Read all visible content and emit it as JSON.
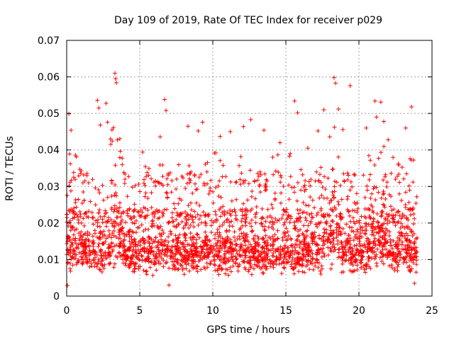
{
  "chart_data": {
    "type": "scatter",
    "title": "Day 109 of 2019, Rate Of TEC Index for receiver p029",
    "xlabel": "GPS time / hours",
    "ylabel": "ROTI / TECUs",
    "xlim": [
      0,
      25
    ],
    "ylim": [
      0,
      0.07
    ],
    "xticks": [
      0,
      5,
      10,
      15,
      20,
      25
    ],
    "yticks": [
      0,
      0.01,
      0.02,
      0.03,
      0.04,
      0.05,
      0.06,
      0.07
    ],
    "xtick_labels": [
      "0",
      "5",
      "10",
      "15",
      "20",
      "25"
    ],
    "ytick_labels": [
      "0",
      "0.01",
      "0.02",
      "0.03",
      "0.04",
      "0.05",
      "0.06",
      "0.07"
    ],
    "grid": true,
    "marker": "+",
    "color": "#ff0000",
    "series": [
      {
        "name": "ROTI",
        "points": [
          [
            0.1,
            0.0092
          ],
          [
            0.15,
            0.0499
          ],
          [
            0.2,
            0.0389
          ],
          [
            0.25,
            0.0362
          ],
          [
            0.3,
            0.0454
          ],
          [
            0.5,
            0.0241
          ],
          [
            0.9,
            0.0347
          ],
          [
            1.0,
            0.0343
          ],
          [
            1.2,
            0.0262
          ],
          [
            1.5,
            0.031
          ],
          [
            2.1,
            0.0536
          ],
          [
            2.2,
            0.0515
          ],
          [
            2.3,
            0.0468
          ],
          [
            2.7,
            0.0528
          ],
          [
            2.8,
            0.0476
          ],
          [
            3.0,
            0.043
          ],
          [
            3.1,
            0.0455
          ],
          [
            3.2,
            0.0461
          ],
          [
            3.3,
            0.061
          ],
          [
            3.35,
            0.0595
          ],
          [
            3.4,
            0.0584
          ],
          [
            3.8,
            0.036
          ],
          [
            4.5,
            0.0298
          ],
          [
            5.2,
            0.0394
          ],
          [
            5.5,
            0.0338
          ],
          [
            6.4,
            0.0436
          ],
          [
            6.7,
            0.0538
          ],
          [
            6.8,
            0.0508
          ],
          [
            7.2,
            0.0316
          ],
          [
            8.3,
            0.0465
          ],
          [
            8.5,
            0.034
          ],
          [
            9.0,
            0.0452
          ],
          [
            9.3,
            0.0476
          ],
          [
            9.6,
            0.034
          ],
          [
            10.2,
            0.0392
          ],
          [
            10.5,
            0.0437
          ],
          [
            11.2,
            0.045
          ],
          [
            11.8,
            0.0357
          ],
          [
            12.1,
            0.0464
          ],
          [
            12.6,
            0.0483
          ],
          [
            13.5,
            0.0454
          ],
          [
            14.1,
            0.038
          ],
          [
            14.6,
            0.042
          ],
          [
            15.3,
            0.039
          ],
          [
            15.6,
            0.0534
          ],
          [
            15.8,
            0.0502
          ],
          [
            16.5,
            0.0405
          ],
          [
            17.2,
            0.0452
          ],
          [
            17.6,
            0.051
          ],
          [
            18.0,
            0.0436
          ],
          [
            18.3,
            0.0598
          ],
          [
            18.4,
            0.0583
          ],
          [
            18.6,
            0.0512
          ],
          [
            18.9,
            0.0456
          ],
          [
            19.4,
            0.0576
          ],
          [
            20.5,
            0.046
          ],
          [
            21.1,
            0.0534
          ],
          [
            21.2,
            0.049
          ],
          [
            21.5,
            0.0531
          ],
          [
            21.7,
            0.0478
          ],
          [
            22.0,
            0.0428
          ],
          [
            22.5,
            0.032
          ],
          [
            23.2,
            0.046
          ],
          [
            23.5,
            0.0376
          ],
          [
            23.6,
            0.0518
          ],
          [
            23.7,
            0.0312
          ],
          [
            23.9,
            0.0254
          ],
          [
            0.05,
            0.0029
          ],
          [
            7.0,
            0.003
          ],
          [
            23.8,
            0.0035
          ]
        ]
      }
    ]
  }
}
